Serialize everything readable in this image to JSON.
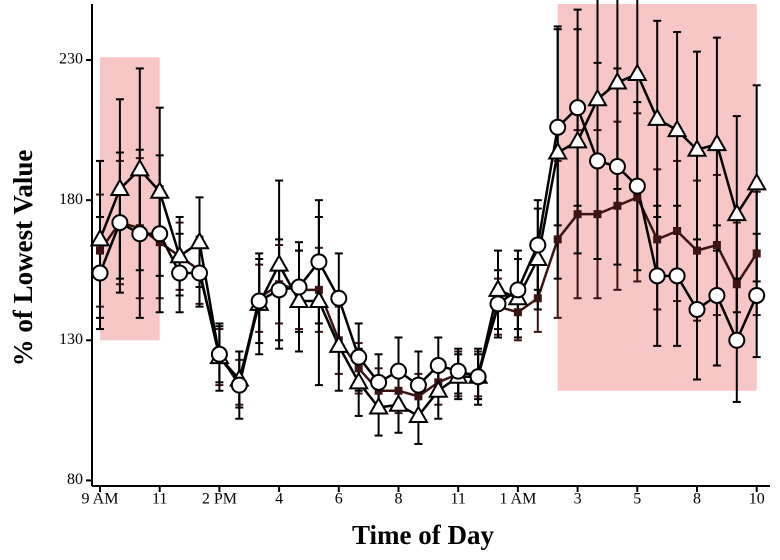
{
  "chart_data": {
    "type": "line",
    "xlabel": "Time of Day",
    "ylabel": "% of Lowest Value",
    "categories": [
      "9 AM",
      null,
      null,
      "11",
      null,
      null,
      "2 PM",
      null,
      null,
      "4",
      null,
      null,
      "6",
      null,
      null,
      "8",
      null,
      null,
      "11",
      null,
      null,
      "1 AM",
      null,
      null,
      "3",
      null,
      null,
      "5",
      null,
      null,
      "8",
      null,
      null,
      "10"
    ],
    "ylim": [
      78,
      250
    ],
    "yticks": [
      80,
      130,
      180,
      230
    ],
    "shaded_regions": [
      {
        "x": [
          0,
          3
        ],
        "y": [
          130,
          231
        ],
        "color": "#f7c6c6"
      },
      {
        "x": [
          23,
          33
        ],
        "y": [
          112,
          250
        ],
        "color": "#f7c6c6"
      }
    ],
    "series": [
      {
        "marker": "square",
        "color": "#3b1414",
        "values": [
          162,
          172,
          170,
          165,
          160,
          155,
          124,
          115,
          145,
          150,
          148,
          148,
          130,
          120,
          112,
          112,
          110,
          115,
          118,
          118,
          142,
          140,
          145,
          166,
          175,
          175,
          178,
          181,
          166,
          169,
          162,
          164,
          150,
          161
        ],
        "errors": [
          20,
          22,
          25,
          20,
          12,
          12,
          10,
          8,
          12,
          14,
          14,
          15,
          12,
          9,
          8,
          8,
          8,
          8,
          8,
          8,
          10,
          10,
          12,
          28,
          30,
          30,
          30,
          30,
          25,
          25,
          25,
          25,
          22,
          22
        ]
      },
      {
        "marker": "triangle",
        "color": "#000000",
        "values": [
          166,
          184,
          191,
          183,
          160,
          165,
          124,
          116,
          143,
          157,
          144,
          144,
          128,
          115,
          106,
          107,
          103,
          112,
          117,
          117,
          148,
          145,
          159,
          197,
          201,
          216,
          222,
          225,
          209,
          205,
          198,
          200,
          175,
          186
        ],
        "errors": [
          28,
          32,
          36,
          30,
          14,
          16,
          12,
          10,
          18,
          30,
          18,
          30,
          16,
          12,
          10,
          10,
          10,
          10,
          8,
          10,
          14,
          14,
          18,
          45,
          40,
          40,
          38,
          40,
          35,
          35,
          35,
          38,
          35,
          35
        ]
      },
      {
        "marker": "circle",
        "color": "#000000",
        "values": [
          154,
          172,
          168,
          168,
          154,
          154,
          125,
          114,
          144,
          148,
          149,
          158,
          145,
          124,
          115,
          119,
          114,
          121,
          119,
          117,
          143,
          148,
          164,
          206,
          213,
          194,
          192,
          185,
          153,
          153,
          141,
          146,
          130,
          146
        ],
        "errors": [
          20,
          25,
          30,
          28,
          14,
          12,
          10,
          12,
          15,
          18,
          16,
          22,
          16,
          12,
          10,
          12,
          12,
          10,
          8,
          8,
          12,
          14,
          16,
          35,
          35,
          35,
          35,
          30,
          25,
          25,
          25,
          25,
          22,
          22
        ]
      }
    ]
  }
}
